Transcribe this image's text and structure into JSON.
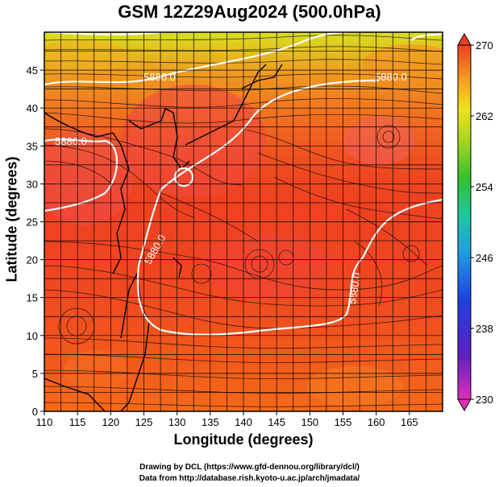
{
  "title": "GSM 12Z29Aug2024 (500.0hPa)",
  "xlabel": "Longitude (degrees)",
  "ylabel": "Latitude (degrees)",
  "credits": [
    "Drawing by DCL (https://www.gfd-dennou.org/library/dcl/)",
    "Data from http://database.rish.kyoto-u.ac.jp/arch/jmadata/"
  ],
  "map": {
    "lon_range": [
      110,
      170
    ],
    "lat_range": [
      0,
      50
    ],
    "lon_ticks": [
      "110",
      "115",
      "120",
      "125",
      "130",
      "135",
      "140",
      "145",
      "150",
      "155",
      "160",
      "165"
    ],
    "lat_ticks": [
      "0",
      "5",
      "10",
      "15",
      "20",
      "25",
      "30",
      "35",
      "40",
      "45"
    ],
    "contour_label": "5880.0",
    "colorbar_ticks": [
      "270",
      "262",
      "254",
      "246",
      "238",
      "230"
    ],
    "colorbar_range": [
      230,
      270
    ],
    "colors": {
      "warm": "#ee3a20",
      "orange": "#f37a1a",
      "yellow": "#e8e020",
      "green": "#40c020",
      "cyan": "#20c0d0",
      "blue": "#2050e0",
      "magenta": "#e020c0",
      "contour": "#ffffff"
    }
  }
}
